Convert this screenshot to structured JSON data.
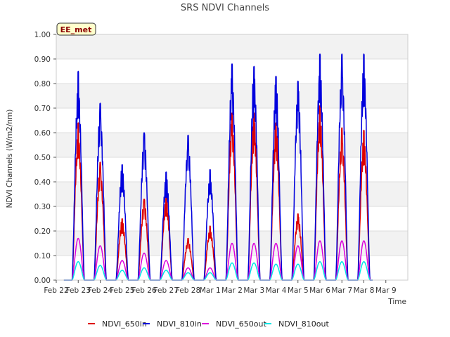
{
  "chart_data": {
    "type": "line",
    "title": "SRS NDVI Channels",
    "ylabel": "NDVI Channels (W/m2/nm)",
    "xlabel": "Time",
    "ylim": [
      0,
      1.0
    ],
    "xlim": [
      0,
      16
    ],
    "yticks": [
      0.0,
      0.1,
      0.2,
      0.3,
      0.4,
      0.5,
      0.6,
      0.7,
      0.8,
      0.9,
      1.0
    ],
    "ytick_labels": [
      "0.00",
      "0.10",
      "0.20",
      "0.30",
      "0.40",
      "0.50",
      "0.60",
      "0.70",
      "0.80",
      "0.90",
      "1.00"
    ],
    "xtick_labels": [
      "Feb 22",
      "Feb 23",
      "Feb 24",
      "Feb 25",
      "Feb 26",
      "Feb 27",
      "Feb 28",
      "Mar 1",
      "Mar 2",
      "Mar 3",
      "Mar 4",
      "Mar 5",
      "Mar 6",
      "Mar 7",
      "Mar 8",
      "Mar 9"
    ],
    "station_badge": "EE_met",
    "days": [
      1,
      2,
      3,
      4,
      5,
      6,
      7,
      8,
      9,
      10,
      11,
      12,
      13,
      14
    ],
    "series": [
      {
        "name": "NDVI_650in",
        "color": "#dd0000",
        "peaks": [
          0.64,
          0.48,
          0.25,
          0.33,
          0.34,
          0.17,
          0.22,
          0.68,
          0.68,
          0.64,
          0.27,
          0.71,
          0.62,
          0.61
        ]
      },
      {
        "name": "NDVI_810in",
        "color": "#0000dd",
        "peaks": [
          0.85,
          0.72,
          0.47,
          0.6,
          0.44,
          0.59,
          0.45,
          0.88,
          0.87,
          0.83,
          0.81,
          0.92,
          0.92,
          0.92
        ]
      },
      {
        "name": "NDVI_650out",
        "color": "#dd00dd",
        "peaks": [
          0.17,
          0.14,
          0.08,
          0.11,
          0.08,
          0.05,
          0.05,
          0.15,
          0.15,
          0.15,
          0.14,
          0.16,
          0.16,
          0.16
        ]
      },
      {
        "name": "NDVI_810out",
        "color": "#00e5e5",
        "peaks": [
          0.075,
          0.06,
          0.04,
          0.05,
          0.04,
          0.03,
          0.03,
          0.07,
          0.07,
          0.065,
          0.065,
          0.075,
          0.075,
          0.075
        ]
      }
    ]
  }
}
